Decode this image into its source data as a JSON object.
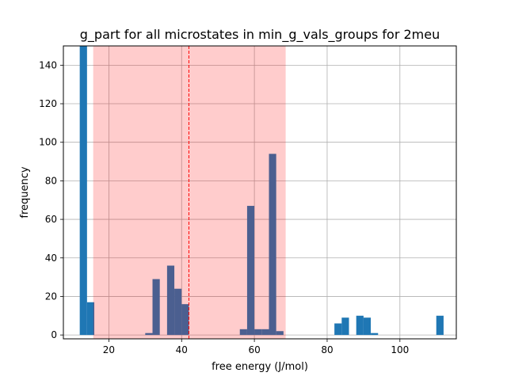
{
  "chart_data": {
    "type": "bar",
    "title": "g_part for all microstates in min_g_vals_groups for 2meu",
    "xlabel": "free energy (J/mol)",
    "ylabel": "frequency",
    "xlim": [
      7.5,
      115.5
    ],
    "ylim": [
      -2,
      150
    ],
    "xticks": [
      20,
      40,
      60,
      80,
      100
    ],
    "yticks": [
      0,
      20,
      40,
      60,
      80,
      100,
      120,
      140
    ],
    "grid": true,
    "bin_width": 2.0,
    "bar_color": "#1f77b4",
    "bins": [
      {
        "x": 12.0,
        "count": 150
      },
      {
        "x": 14.0,
        "count": 17
      },
      {
        "x": 30.0,
        "count": 1
      },
      {
        "x": 32.0,
        "count": 29
      },
      {
        "x": 36.0,
        "count": 36
      },
      {
        "x": 38.0,
        "count": 24
      },
      {
        "x": 40.0,
        "count": 16
      },
      {
        "x": 56.0,
        "count": 3
      },
      {
        "x": 58.0,
        "count": 67
      },
      {
        "x": 60.0,
        "count": 3
      },
      {
        "x": 62.0,
        "count": 3
      },
      {
        "x": 64.0,
        "count": 94
      },
      {
        "x": 66.0,
        "count": 2
      },
      {
        "x": 82.0,
        "count": 6
      },
      {
        "x": 84.0,
        "count": 9
      },
      {
        "x": 88.0,
        "count": 10
      },
      {
        "x": 90.0,
        "count": 9
      },
      {
        "x": 92.0,
        "count": 1
      },
      {
        "x": 110.0,
        "count": 10
      }
    ],
    "shaded_region": {
      "x0": 15.7,
      "x1": 68.6,
      "color": "#ff0000",
      "alpha": 0.2
    },
    "mean_line": {
      "x": 42.0,
      "color": "#ff0000",
      "style": "dashed"
    }
  }
}
